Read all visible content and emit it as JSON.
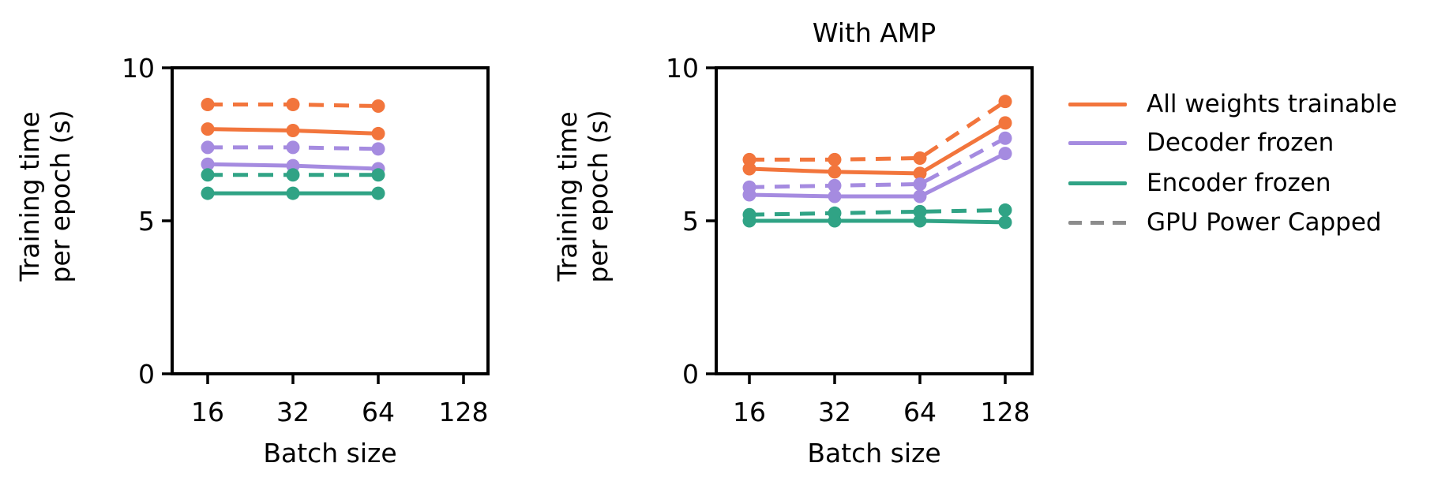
{
  "figure": {
    "background": "#ffffff",
    "axis_color": "#000000",
    "text_color": "#000000"
  },
  "chart_data": [
    {
      "type": "line",
      "title": "",
      "xlabel": "Batch size",
      "ylabel": "Training time\nper epoch (s)",
      "x_ticks": [
        "16",
        "32",
        "64",
        "128"
      ],
      "y_ticks": [
        "0",
        "5",
        "10"
      ],
      "y_tick_values": [
        0,
        5,
        10
      ],
      "ylim": [
        0,
        10
      ],
      "grid": false,
      "series": [
        {
          "name": "All weights trainable (GPU Power Capped)",
          "color": "#F2753C",
          "style": "dashed",
          "x": [
            16,
            32,
            64
          ],
          "values": [
            8.8,
            8.8,
            8.75
          ]
        },
        {
          "name": "All weights trainable",
          "color": "#F2753C",
          "style": "solid",
          "x": [
            16,
            32,
            64
          ],
          "values": [
            8.0,
            7.95,
            7.85
          ]
        },
        {
          "name": "Decoder frozen (GPU Power Capped)",
          "color": "#A58BE0",
          "style": "dashed",
          "x": [
            16,
            32,
            64
          ],
          "values": [
            7.4,
            7.4,
            7.35
          ]
        },
        {
          "name": "Decoder frozen",
          "color": "#A58BE0",
          "style": "solid",
          "x": [
            16,
            32,
            64
          ],
          "values": [
            6.85,
            6.8,
            6.7
          ]
        },
        {
          "name": "Encoder frozen (GPU Power Capped)",
          "color": "#30A385",
          "style": "dashed",
          "x": [
            16,
            32,
            64
          ],
          "values": [
            6.5,
            6.5,
            6.5
          ]
        },
        {
          "name": "Encoder frozen",
          "color": "#30A385",
          "style": "solid",
          "x": [
            16,
            32,
            64
          ],
          "values": [
            5.9,
            5.9,
            5.9
          ]
        }
      ]
    },
    {
      "type": "line",
      "title": "With AMP",
      "xlabel": "Batch size",
      "ylabel": "Training time\nper epoch (s)",
      "x_ticks": [
        "16",
        "32",
        "64",
        "128"
      ],
      "y_ticks": [
        "0",
        "5",
        "10"
      ],
      "y_tick_values": [
        0,
        5,
        10
      ],
      "ylim": [
        0,
        10
      ],
      "grid": false,
      "series": [
        {
          "name": "All weights trainable (GPU Power Capped)",
          "color": "#F2753C",
          "style": "dashed",
          "x": [
            16,
            32,
            64,
            128
          ],
          "values": [
            7.0,
            7.0,
            7.05,
            8.9
          ]
        },
        {
          "name": "All weights trainable",
          "color": "#F2753C",
          "style": "solid",
          "x": [
            16,
            32,
            64,
            128
          ],
          "values": [
            6.7,
            6.6,
            6.55,
            8.2
          ]
        },
        {
          "name": "Decoder frozen (GPU Power Capped)",
          "color": "#A58BE0",
          "style": "dashed",
          "x": [
            16,
            32,
            64,
            128
          ],
          "values": [
            6.1,
            6.15,
            6.2,
            7.7
          ]
        },
        {
          "name": "Decoder frozen",
          "color": "#A58BE0",
          "style": "solid",
          "x": [
            16,
            32,
            64,
            128
          ],
          "values": [
            5.85,
            5.8,
            5.8,
            7.2
          ]
        },
        {
          "name": "Encoder frozen (GPU Power Capped)",
          "color": "#30A385",
          "style": "dashed",
          "x": [
            16,
            32,
            64,
            128
          ],
          "values": [
            5.2,
            5.25,
            5.3,
            5.35
          ]
        },
        {
          "name": "Encoder frozen",
          "color": "#30A385",
          "style": "solid",
          "x": [
            16,
            32,
            64,
            128
          ],
          "values": [
            5.0,
            5.0,
            5.0,
            4.95
          ]
        }
      ]
    }
  ],
  "legend": {
    "items": [
      {
        "label": "All weights trainable",
        "color": "#F2753C",
        "style": "solid"
      },
      {
        "label": "Decoder frozen",
        "color": "#A58BE0",
        "style": "solid"
      },
      {
        "label": "Encoder frozen",
        "color": "#30A385",
        "style": "solid"
      },
      {
        "label": "GPU Power Capped",
        "color": "#8C8C8C",
        "style": "dashed"
      }
    ]
  }
}
